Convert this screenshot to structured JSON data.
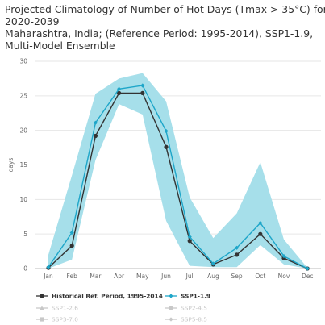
{
  "title_lines": [
    "Projected Climatology of Number of Hot Days (Tmax > 35°C) for",
    "2020-2039",
    "Maharashtra, India; (Reference Period: 1995-2014), SSP1-1.9,",
    "Multi-Model Ensemble"
  ],
  "chart_data": {
    "type": "line",
    "ylabel": "days",
    "ylim": [
      0,
      30
    ],
    "yticks": [
      0,
      5,
      10,
      15,
      20,
      25,
      30
    ],
    "grid": "horizontal",
    "legend_position": "bottom",
    "categories": [
      "Jan",
      "Feb",
      "Mar",
      "Apr",
      "May",
      "Jun",
      "Jul",
      "Aug",
      "Sep",
      "Oct",
      "Nov",
      "Dec"
    ],
    "series": [
      {
        "name": "Historical Ref. Period, 1995-2014",
        "color": "#333333",
        "marker": "circle",
        "values": [
          0.1,
          3.3,
          19.2,
          25.4,
          25.4,
          17.6,
          4.0,
          0.6,
          2.0,
          5.0,
          1.5,
          0.0
        ]
      },
      {
        "name": "SSP1-1.9",
        "color": "#1ea6c9",
        "marker": "diamond",
        "values": [
          0.2,
          5.2,
          21.1,
          26.0,
          26.5,
          19.9,
          4.6,
          0.7,
          3.0,
          6.6,
          1.8,
          0.0
        ]
      }
    ],
    "band": {
      "color": "#a6dfea",
      "upper": [
        2.0,
        13.5,
        25.3,
        27.5,
        28.3,
        24.2,
        10.3,
        4.4,
        8.0,
        15.4,
        4.2,
        0.1
      ],
      "lower": [
        0.0,
        1.3,
        15.7,
        23.8,
        22.3,
        6.9,
        0.4,
        0.2,
        0.2,
        3.4,
        0.6,
        0.0
      ]
    },
    "legend": [
      {
        "label": "Historical Ref. Period, 1995-2014",
        "active": true,
        "marker": "circle",
        "color": "#333333"
      },
      {
        "label": "SSP1-1.9",
        "active": true,
        "marker": "diamond",
        "color": "#1ea6c9"
      },
      {
        "label": "SSP1-2.6",
        "active": false,
        "marker": "triangle",
        "color": "#c8c8c8"
      },
      {
        "label": "SSP2-4.5",
        "active": false,
        "marker": "circle",
        "color": "#c8c8c8"
      },
      {
        "label": "SSP3-7.0",
        "active": false,
        "marker": "square",
        "color": "#c8c8c8"
      },
      {
        "label": "SSP5-8.5",
        "active": false,
        "marker": "diamond",
        "color": "#c8c8c8"
      }
    ]
  }
}
